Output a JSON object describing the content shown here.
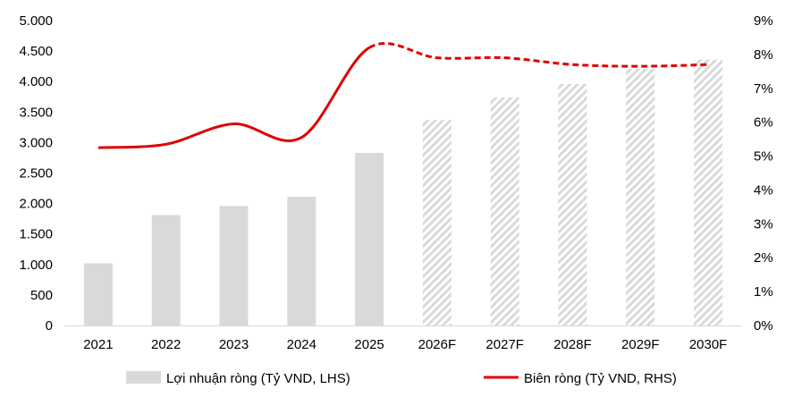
{
  "chart_data": {
    "type": "bar+line",
    "categories": [
      "2021",
      "2022",
      "2023",
      "2024",
      "2025",
      "2026F",
      "2027F",
      "2028F",
      "2029F",
      "2030F"
    ],
    "series": [
      {
        "name": "Lợi nhuận ròng (Tỷ VND, LHS)",
        "type": "bar",
        "axis": "left",
        "values": [
          1020,
          1810,
          1960,
          2110,
          2830,
          3370,
          3740,
          3960,
          4210,
          4360
        ],
        "forecast_from_index": 5,
        "color": "#d9d9d9"
      },
      {
        "name": "Biên ròng (Tỷ VND, RHS)",
        "type": "line",
        "axis": "right",
        "values": [
          5.25,
          5.35,
          5.95,
          5.55,
          8.2,
          7.9,
          7.9,
          7.7,
          7.65,
          7.7
        ],
        "forecast_from_index": 5,
        "color": "#e00000"
      }
    ],
    "y_left": {
      "min": 0,
      "max": 5000,
      "ticks": [
        0,
        500,
        1000,
        1500,
        2000,
        2500,
        3000,
        3500,
        4000,
        4500,
        5000
      ],
      "tick_labels": [
        "0",
        "500",
        "1.000",
        "1.500",
        "2.000",
        "2.500",
        "3.000",
        "3.500",
        "4.000",
        "4.500",
        "5.000"
      ]
    },
    "y_right": {
      "min": 0,
      "max": 9,
      "ticks": [
        0,
        1,
        2,
        3,
        4,
        5,
        6,
        7,
        8,
        9
      ],
      "tick_labels": [
        "0%",
        "1%",
        "2%",
        "3%",
        "4%",
        "5%",
        "6%",
        "7%",
        "8%",
        "9%"
      ]
    },
    "grid": false,
    "legend_position": "bottom"
  }
}
